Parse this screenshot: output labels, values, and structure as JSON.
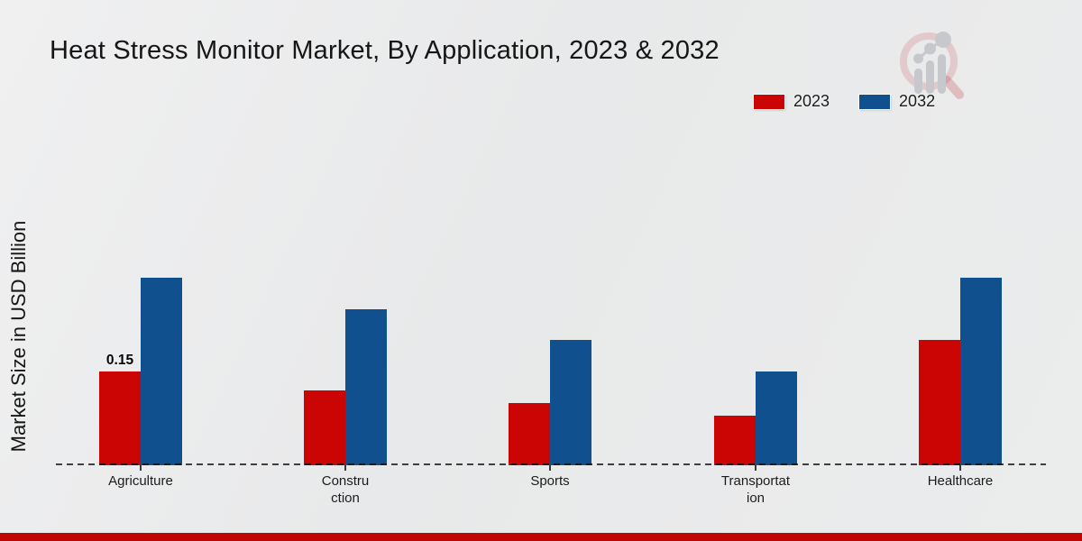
{
  "header": {
    "logo": "magnifier-growth-chart-logo"
  },
  "chart_data": {
    "type": "bar",
    "title": "Heat Stress Monitor Market, By Application, 2023 & 2032",
    "ylabel": "Market Size in USD Billion",
    "xlabel": "",
    "categories": [
      "Agriculture",
      "Construction",
      "Sports",
      "Transportation",
      "Healthcare"
    ],
    "categories_display": [
      [
        "Agriculture"
      ],
      [
        "Constru",
        "ction"
      ],
      [
        "Sports"
      ],
      [
        "Transportat",
        "ion"
      ],
      [
        "Healthcare"
      ]
    ],
    "series": [
      {
        "name": "2023",
        "color": "#cb0404",
        "values": [
          0.15,
          0.12,
          0.1,
          0.08,
          0.2
        ]
      },
      {
        "name": "2032",
        "color": "#11508e",
        "values": [
          0.3,
          0.25,
          0.2,
          0.15,
          0.3
        ]
      }
    ],
    "point_labels": [
      {
        "series_index": 0,
        "category_index": 0,
        "text": "0.15"
      }
    ],
    "ylim": [
      0,
      0.32
    ],
    "grid": false,
    "baseline_style": "dashed",
    "legend_position": "top-right"
  },
  "footer": {
    "strip_color": "#c00505"
  }
}
